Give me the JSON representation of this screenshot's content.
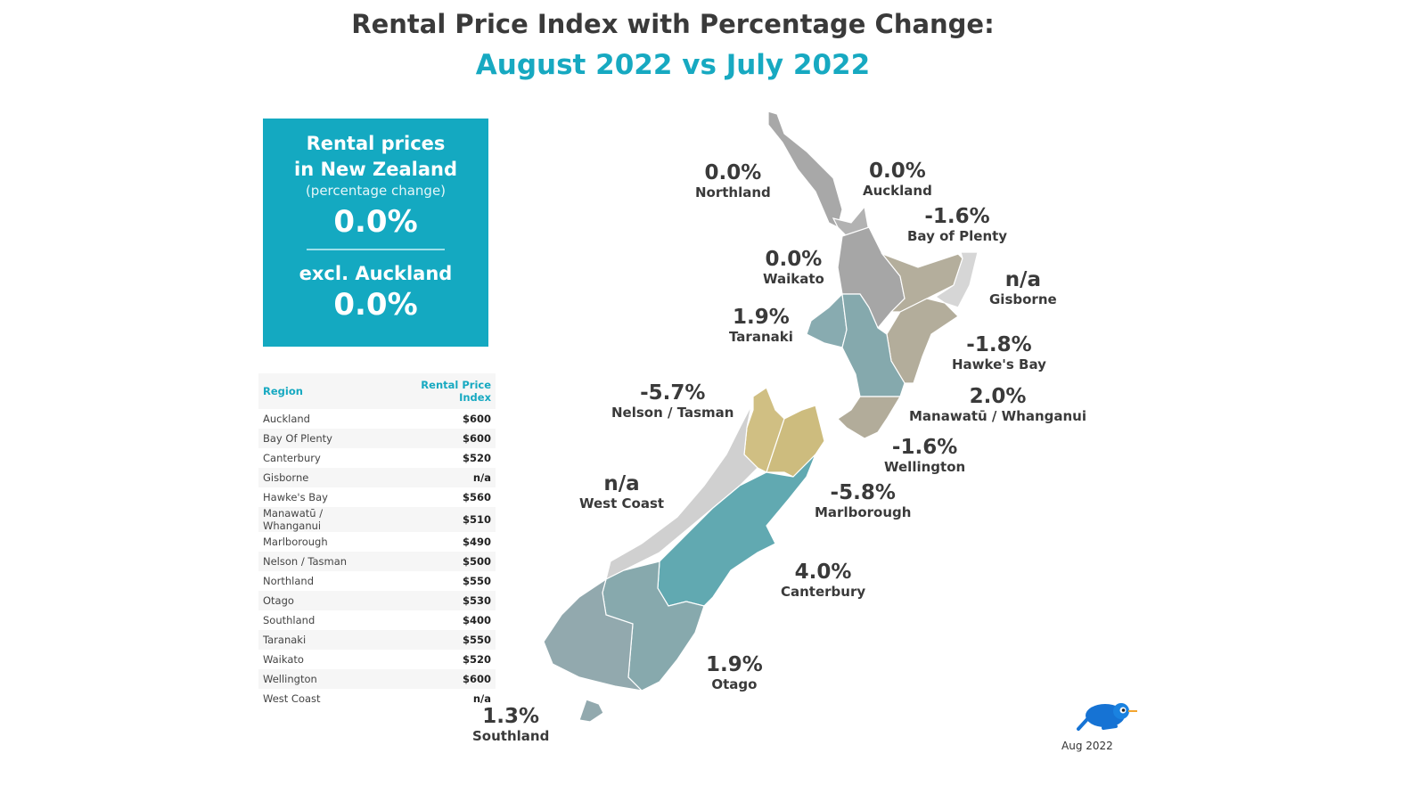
{
  "header": {
    "title": "Rental Price Index with Percentage Change:",
    "subtitle": "August 2022 vs July 2022"
  },
  "summary": {
    "heading_line1": "Rental prices",
    "heading_line2": "in New Zealand",
    "subheading": "(percentage change)",
    "national_change": "0.0%",
    "excl_label": "excl. Auckland",
    "excl_change": "0.0%",
    "color": "#14a9c1"
  },
  "table": {
    "columns": [
      "Region",
      "Rental Price Index"
    ],
    "rows": [
      [
        "Auckland",
        "$600"
      ],
      [
        "Bay Of Plenty",
        "$600"
      ],
      [
        "Canterbury",
        "$520"
      ],
      [
        "Gisborne",
        "n/a"
      ],
      [
        "Hawke's Bay",
        "$560"
      ],
      [
        "Manawatū / Whanganui",
        "$510"
      ],
      [
        "Marlborough",
        "$490"
      ],
      [
        "Nelson / Tasman",
        "$500"
      ],
      [
        "Northland",
        "$550"
      ],
      [
        "Otago",
        "$530"
      ],
      [
        "Southland",
        "$400"
      ],
      [
        "Taranaki",
        "$550"
      ],
      [
        "Waikato",
        "$520"
      ],
      [
        "Wellington",
        "$600"
      ],
      [
        "West Coast",
        "n/a"
      ]
    ]
  },
  "map": {
    "regions": {
      "northland": {
        "name": "Northland",
        "change": "0.0%",
        "color": "#a8a8a8"
      },
      "auckland": {
        "name": "Auckland",
        "change": "0.0%",
        "color": "#b2b2b2"
      },
      "bay_of_plenty": {
        "name": "Bay of Plenty",
        "change": "-1.6%",
        "color": "#b4ae9c"
      },
      "gisborne": {
        "name": "Gisborne",
        "change": "n/a",
        "color": "#d6d6d6"
      },
      "waikato": {
        "name": "Waikato",
        "change": "0.0%",
        "color": "#a6a6a6"
      },
      "taranaki": {
        "name": "Taranaki",
        "change": "1.9%",
        "color": "#88abb0"
      },
      "hawkes_bay": {
        "name": "Hawke's Bay",
        "change": "-1.8%",
        "color": "#b3ad9b"
      },
      "manawatu": {
        "name": "Manawatū / Whanganui",
        "change": "2.0%",
        "color": "#85a9ad"
      },
      "wellington": {
        "name": "Wellington",
        "change": "-1.6%",
        "color": "#b2ac9a"
      },
      "nelson_tasman": {
        "name": "Nelson / Tasman",
        "change": "-5.7%",
        "color": "#d0bf83"
      },
      "marlborough": {
        "name": "Marlborough",
        "change": "-5.8%",
        "color": "#cdbc7e"
      },
      "west_coast": {
        "name": "West Coast",
        "change": "n/a",
        "color": "#d0d0d0"
      },
      "canterbury": {
        "name": "Canterbury",
        "change": "4.0%",
        "color": "#61a9b1"
      },
      "otago": {
        "name": "Otago",
        "change": "1.9%",
        "color": "#87a9ad"
      },
      "southland": {
        "name": "Southland",
        "change": "1.3%",
        "color": "#92a9ae"
      }
    }
  },
  "footer": {
    "date": "Aug 2022",
    "logo": "blue-kiwi-bird"
  }
}
